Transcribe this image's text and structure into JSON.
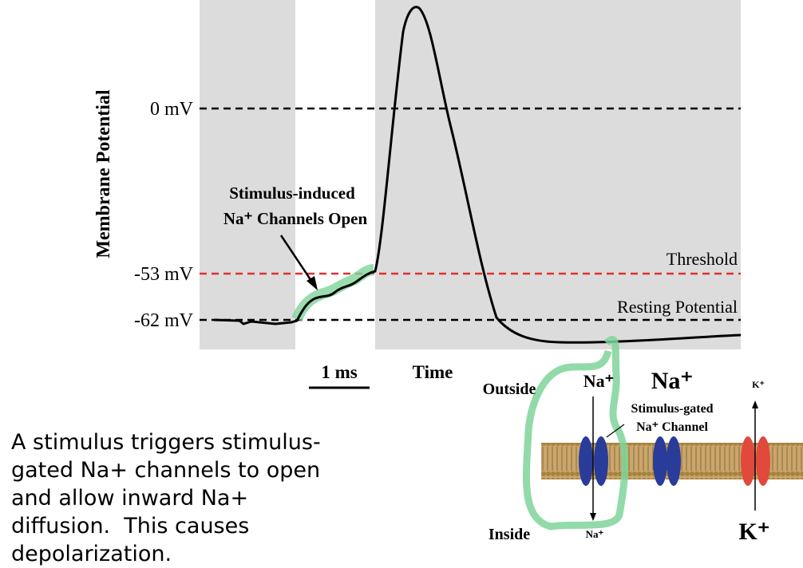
{
  "graph": {
    "y_axis_label": "Membrane Potential",
    "levels": [
      "0 mV",
      "-53 mV",
      "-62 mV"
    ],
    "threshold_label": "Threshold",
    "resting_label": "Resting Potential",
    "annotation": [
      "Stimulus-induced",
      "Na⁺ Channels Open"
    ],
    "scale_label": "1 ms",
    "x_axis_label": "Time"
  },
  "membrane": {
    "outside": "Outside",
    "inside": "Inside",
    "na_top_small": "Na⁺",
    "na_top_large": "Na⁺",
    "k_top": "K⁺",
    "na_bottom": "Na⁺",
    "k_bottom": "K⁺",
    "channel_label": [
      "Stimulus-gated",
      "Na⁺ Channel"
    ]
  },
  "caption": [
    "A stimulus triggers stimulus-",
    "gated Na+ channels to open",
    "and allow inward Na+",
    "diffusion.  This causes",
    "depolarization."
  ]
}
